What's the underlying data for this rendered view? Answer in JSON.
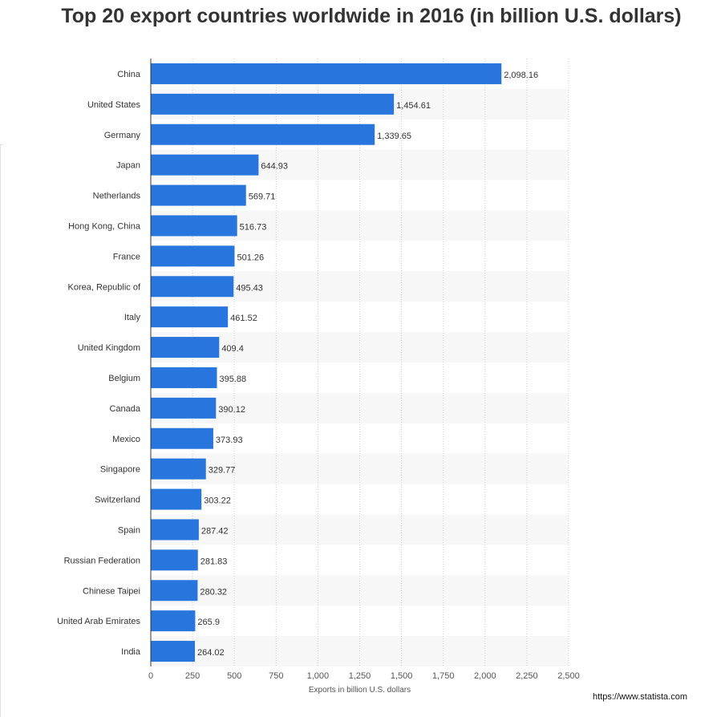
{
  "title": "Top 20 export countries worldwide in 2016 (in billion U.S. dollars)",
  "source": "https://www.statista.com",
  "chart_data": {
    "type": "bar",
    "orientation": "horizontal",
    "title": "Top 20 export countries worldwide in 2016 (in billion U.S. dollars)",
    "xlabel": "Exports in billion U.S. dollars",
    "ylabel": "",
    "xlim": [
      0,
      2500
    ],
    "x_ticks": [
      0,
      250,
      500,
      750,
      1000,
      1250,
      1500,
      1750,
      2000,
      2250,
      2500
    ],
    "x_tick_labels": [
      "0",
      "250",
      "500",
      "750",
      "1,000",
      "1,250",
      "1,500",
      "1,750",
      "2,000",
      "2,250",
      "2,500"
    ],
    "grid": "vertical dotted",
    "bar_color": "#2876dd",
    "categories": [
      "China",
      "United States",
      "Germany",
      "Japan",
      "Netherlands",
      "Hong Kong, China",
      "France",
      "Korea, Republic of",
      "Italy",
      "United Kingdom",
      "Belgium",
      "Canada",
      "Mexico",
      "Singapore",
      "Switzerland",
      "Spain",
      "Russian Federation",
      "Chinese Taipei",
      "United Arab Emirates",
      "India"
    ],
    "values": [
      2098.16,
      1454.61,
      1339.65,
      644.93,
      569.71,
      516.73,
      501.26,
      495.43,
      461.52,
      409.4,
      395.88,
      390.12,
      373.93,
      329.77,
      303.22,
      287.42,
      281.83,
      280.32,
      265.9,
      264.02
    ],
    "value_labels": [
      "2,098.16",
      "1,454.61",
      "1,339.65",
      "644.93",
      "569.71",
      "516.73",
      "501.26",
      "495.43",
      "461.52",
      "409.4",
      "395.88",
      "390.12",
      "373.93",
      "329.77",
      "303.22",
      "287.42",
      "281.83",
      "280.32",
      "265.9",
      "264.02"
    ]
  }
}
